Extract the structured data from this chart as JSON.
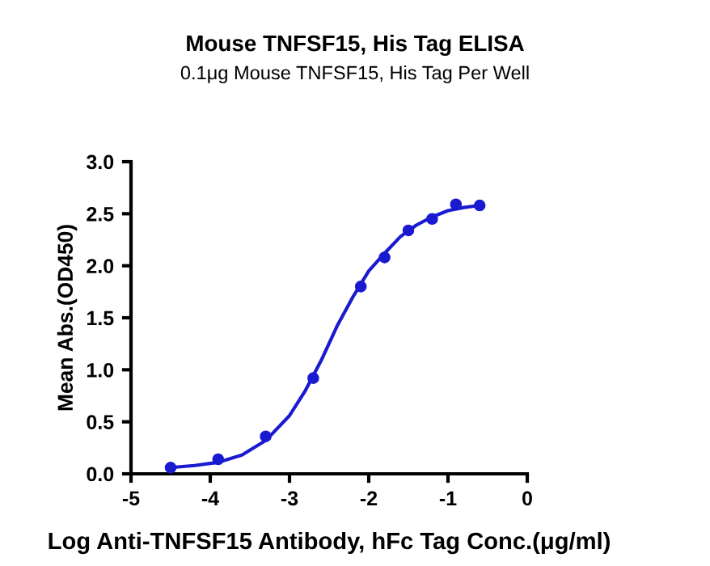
{
  "chart_data": {
    "type": "scatter",
    "title": "Mouse TNFSF15, His Tag ELISA",
    "subtitle": "0.1μg Mouse TNFSF15, His Tag Per Well",
    "xlabel": "Log Anti-TNFSF15 Antibody, hFc Tag Conc.(μg/ml)",
    "ylabel": "Mean Abs.(OD450)",
    "series": [
      {
        "color": "#1a1ad0",
        "marker": "circle",
        "x": [
          -4.5,
          -3.9,
          -3.3,
          -2.7,
          -2.1,
          -1.8,
          -1.5,
          -1.2,
          -0.9,
          -0.6
        ],
        "values": [
          0.06,
          0.14,
          0.36,
          0.92,
          1.8,
          2.08,
          2.34,
          2.45,
          2.59,
          2.58
        ]
      },
      {
        "type": "line",
        "color": "#1a1ad0",
        "marker": "none",
        "x": [
          -4.5,
          -4.2,
          -3.9,
          -3.6,
          -3.3,
          -3.0,
          -2.8,
          -2.6,
          -2.4,
          -2.2,
          -2.0,
          -1.8,
          -1.6,
          -1.4,
          -1.2,
          -1.0,
          -0.8,
          -0.6
        ],
        "values": [
          0.06,
          0.08,
          0.11,
          0.18,
          0.32,
          0.56,
          0.8,
          1.09,
          1.42,
          1.7,
          1.95,
          2.12,
          2.28,
          2.39,
          2.47,
          2.53,
          2.56,
          2.58
        ]
      }
    ],
    "xlim": [
      -5,
      0
    ],
    "xticks": [
      -5,
      -4,
      -3,
      -2,
      -1,
      0
    ],
    "ylim": [
      0,
      3
    ],
    "yticks": [
      {
        "value": 0,
        "label": "0.0"
      },
      {
        "value": 0.5,
        "label": "0.5"
      },
      {
        "value": 1,
        "label": "1.0"
      },
      {
        "value": 1.5,
        "label": "1.5"
      },
      {
        "value": 2,
        "label": "2.0"
      },
      {
        "value": 2.5,
        "label": "2.5"
      },
      {
        "value": 3,
        "label": "3.0"
      }
    ],
    "grid": false,
    "legend": false
  }
}
